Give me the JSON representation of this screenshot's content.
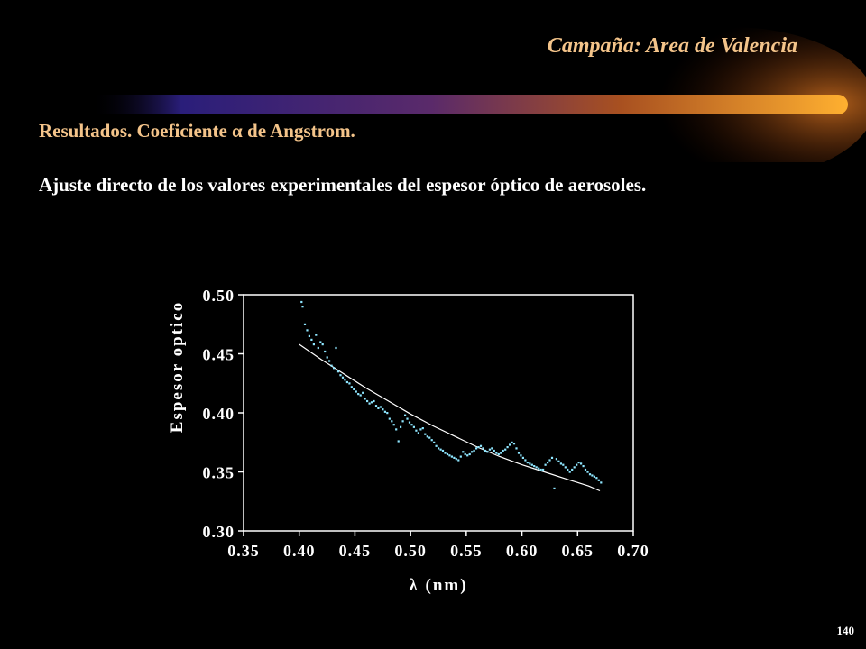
{
  "header": {
    "title": "Campaña: Area de Valencia",
    "section_title": "Resultados. Coeficiente α de Angstrom.",
    "subtitle": "Ajuste directo de los valores experimentales del espesor óptico de aerosoles."
  },
  "page_number": "140",
  "colors": {
    "background": "#000000",
    "header_text": "#f4c48a",
    "points": "#8ee6ff",
    "fit_line": "#ffffff",
    "bar_start": "#2a1e7a",
    "bar_end": "#ffb030"
  },
  "chart_data": {
    "type": "scatter",
    "title": "",
    "xlabel": "λ (nm)",
    "ylabel": "Espesor optico",
    "xlim": [
      0.35,
      0.7
    ],
    "ylim": [
      0.3,
      0.5
    ],
    "xticks": [
      "0.35",
      "0.40",
      "0.45",
      "0.50",
      "0.55",
      "0.60",
      "0.65",
      "0.70"
    ],
    "yticks": [
      "0.30",
      "0.35",
      "0.40",
      "0.45",
      "0.50"
    ],
    "grid": false,
    "series": [
      {
        "type": "scatter",
        "x": [
          0.402,
          0.403,
          0.405,
          0.407,
          0.409,
          0.411,
          0.413,
          0.415,
          0.417,
          0.419,
          0.421,
          0.423,
          0.425,
          0.427,
          0.429,
          0.431,
          0.433,
          0.435,
          0.437,
          0.439,
          0.441,
          0.443,
          0.445,
          0.447,
          0.449,
          0.451,
          0.453,
          0.455,
          0.457,
          0.459,
          0.461,
          0.463,
          0.465,
          0.467,
          0.469,
          0.471,
          0.473,
          0.475,
          0.477,
          0.479,
          0.481,
          0.483,
          0.485,
          0.487,
          0.489,
          0.491,
          0.493,
          0.495,
          0.497,
          0.499,
          0.501,
          0.503,
          0.505,
          0.507,
          0.509,
          0.511,
          0.513,
          0.515,
          0.517,
          0.519,
          0.521,
          0.523,
          0.525,
          0.527,
          0.529,
          0.531,
          0.533,
          0.535,
          0.537,
          0.539,
          0.541,
          0.543,
          0.545,
          0.547,
          0.549,
          0.551,
          0.553,
          0.555,
          0.557,
          0.559,
          0.561,
          0.563,
          0.565,
          0.567,
          0.569,
          0.571,
          0.573,
          0.575,
          0.577,
          0.579,
          0.581,
          0.583,
          0.585,
          0.587,
          0.589,
          0.591,
          0.593,
          0.595,
          0.597,
          0.599,
          0.601,
          0.603,
          0.605,
          0.607,
          0.609,
          0.611,
          0.613,
          0.615,
          0.617,
          0.619,
          0.621,
          0.623,
          0.625,
          0.627,
          0.629,
          0.631,
          0.633,
          0.635,
          0.637,
          0.639,
          0.641,
          0.643,
          0.645,
          0.647,
          0.649,
          0.651,
          0.653,
          0.655,
          0.657,
          0.659,
          0.661,
          0.663,
          0.665,
          0.667,
          0.669,
          0.671
        ],
        "y": [
          0.494,
          0.49,
          0.475,
          0.47,
          0.465,
          0.462,
          0.458,
          0.466,
          0.455,
          0.46,
          0.458,
          0.452,
          0.447,
          0.444,
          0.44,
          0.438,
          0.455,
          0.435,
          0.432,
          0.43,
          0.428,
          0.426,
          0.425,
          0.422,
          0.42,
          0.418,
          0.416,
          0.415,
          0.417,
          0.412,
          0.41,
          0.408,
          0.409,
          0.41,
          0.406,
          0.404,
          0.405,
          0.403,
          0.401,
          0.4,
          0.395,
          0.393,
          0.39,
          0.386,
          0.376,
          0.388,
          0.393,
          0.398,
          0.395,
          0.392,
          0.39,
          0.388,
          0.385,
          0.383,
          0.386,
          0.387,
          0.382,
          0.38,
          0.379,
          0.377,
          0.375,
          0.372,
          0.37,
          0.369,
          0.368,
          0.366,
          0.365,
          0.364,
          0.363,
          0.362,
          0.361,
          0.36,
          0.363,
          0.367,
          0.365,
          0.364,
          0.365,
          0.367,
          0.368,
          0.37,
          0.371,
          0.372,
          0.37,
          0.368,
          0.367,
          0.369,
          0.37,
          0.368,
          0.366,
          0.365,
          0.366,
          0.368,
          0.369,
          0.371,
          0.373,
          0.375,
          0.374,
          0.37,
          0.366,
          0.364,
          0.362,
          0.36,
          0.358,
          0.357,
          0.356,
          0.355,
          0.354,
          0.353,
          0.352,
          0.352,
          0.356,
          0.358,
          0.36,
          0.362,
          0.336,
          0.361,
          0.359,
          0.357,
          0.356,
          0.354,
          0.352,
          0.35,
          0.352,
          0.354,
          0.356,
          0.358,
          0.357,
          0.355,
          0.352,
          0.35,
          0.348,
          0.347,
          0.346,
          0.345,
          0.343,
          0.341
        ]
      },
      {
        "type": "line",
        "x": [
          0.4,
          0.42,
          0.44,
          0.46,
          0.48,
          0.5,
          0.52,
          0.54,
          0.56,
          0.58,
          0.6,
          0.62,
          0.64,
          0.66,
          0.67
        ],
        "y": [
          0.458,
          0.445,
          0.433,
          0.421,
          0.41,
          0.399,
          0.389,
          0.38,
          0.371,
          0.363,
          0.356,
          0.35,
          0.344,
          0.338,
          0.334
        ]
      }
    ]
  }
}
